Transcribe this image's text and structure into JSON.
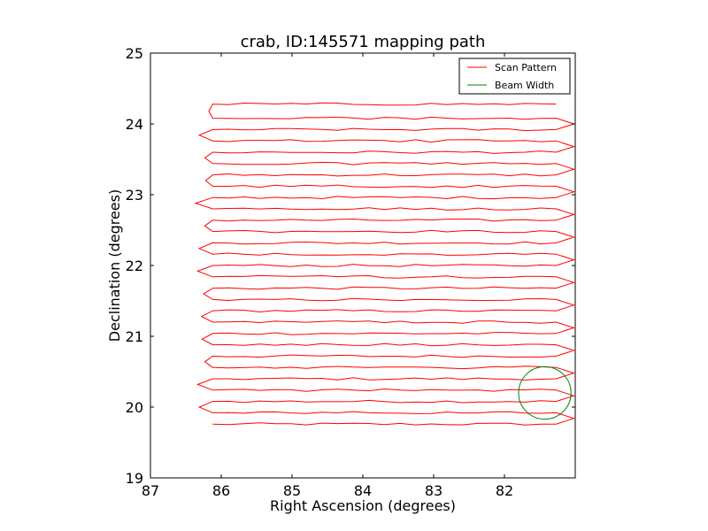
{
  "chart_data": {
    "type": "line",
    "title": "crab, ID:145571 mapping path",
    "xlabel": "Right Ascension (degrees)",
    "ylabel": "Declination (degrees)",
    "xlim": [
      87,
      81
    ],
    "ylim": [
      19,
      25
    ],
    "xticks": [
      87,
      86,
      85,
      84,
      83,
      82
    ],
    "yticks": [
      19,
      20,
      21,
      22,
      23,
      24,
      25
    ],
    "x_inverted": true,
    "grid": false,
    "legend": {
      "placement": "upper right",
      "entries": [
        "Scan Pattern",
        "Beam Width"
      ]
    },
    "series": [
      {
        "name": "Scan Pattern",
        "color": "#ff0000",
        "scan": {
          "rows_dec": [
            19.76,
            19.92,
            20.08,
            20.24,
            20.4,
            20.56,
            20.72,
            20.88,
            21.04,
            21.2,
            21.36,
            21.52,
            21.68,
            21.84,
            22.0,
            22.16,
            22.32,
            22.48,
            22.64,
            22.8,
            22.96,
            23.12,
            23.28,
            23.44,
            23.6,
            23.76,
            23.92,
            24.08,
            24.28
          ],
          "ra_east": 86.12,
          "ra_west": 81.27,
          "turn_east_min": 86.15,
          "turn_east_max": 86.38,
          "turn_west": 81.02
        }
      },
      {
        "name": "Beam Width",
        "color": "#008000",
        "circle": {
          "ra": 81.43,
          "dec": 20.2,
          "radius_deg": 0.37
        }
      }
    ]
  }
}
